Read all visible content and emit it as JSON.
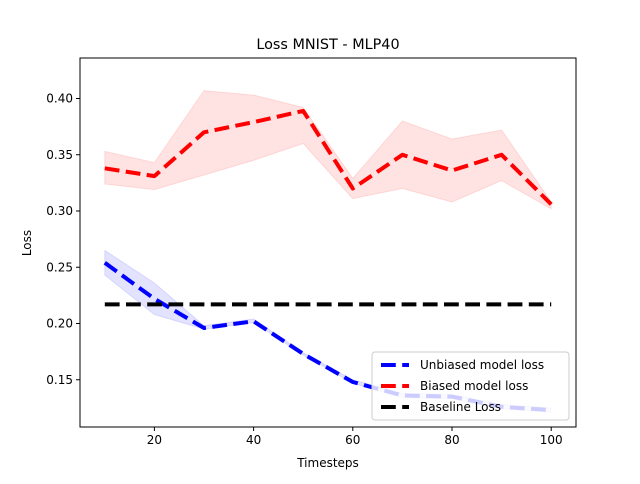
{
  "chart_data": {
    "type": "line",
    "title": "Loss MNIST - MLP40",
    "xlabel": "Timesteps",
    "ylabel": "Loss",
    "xlim": [
      5,
      105
    ],
    "ylim": [
      0.108,
      0.436
    ],
    "xticks": [
      20,
      40,
      60,
      80,
      100
    ],
    "yticks": [
      0.15,
      0.2,
      0.25,
      0.3,
      0.35,
      0.4
    ],
    "ytick_labels": [
      "0.15",
      "0.20",
      "0.25",
      "0.30",
      "0.35",
      "0.40"
    ],
    "grid": false,
    "legend_position": "lower-right",
    "x": [
      10,
      20,
      30,
      40,
      50,
      60,
      70,
      80,
      90,
      100
    ],
    "series": [
      {
        "name": "Unbiased model loss",
        "color": "#0000ff",
        "band_color": "#0000ff",
        "values": [
          0.254,
          0.222,
          0.196,
          0.202,
          0.173,
          0.148,
          0.136,
          0.135,
          0.126,
          0.123
        ],
        "lower": [
          0.243,
          0.208,
          0.195,
          0.201,
          0.172,
          0.147,
          0.134,
          0.133,
          0.124,
          0.121
        ],
        "upper": [
          0.265,
          0.236,
          0.198,
          0.204,
          0.174,
          0.15,
          0.138,
          0.137,
          0.128,
          0.125
        ]
      },
      {
        "name": "Biased model loss",
        "color": "#ff0000",
        "band_color": "#ff0000",
        "values": [
          0.338,
          0.331,
          0.37,
          0.379,
          0.389,
          0.32,
          0.35,
          0.336,
          0.35,
          0.306
        ],
        "lower": [
          0.324,
          0.319,
          0.332,
          0.345,
          0.36,
          0.311,
          0.32,
          0.308,
          0.327,
          0.302
        ],
        "upper": [
          0.353,
          0.343,
          0.407,
          0.403,
          0.392,
          0.329,
          0.38,
          0.364,
          0.372,
          0.308
        ]
      },
      {
        "name": "Baseline Loss",
        "color": "#000000",
        "values": [
          0.217,
          0.217,
          0.217,
          0.217,
          0.217,
          0.217,
          0.217,
          0.217,
          0.217,
          0.217
        ]
      }
    ]
  }
}
